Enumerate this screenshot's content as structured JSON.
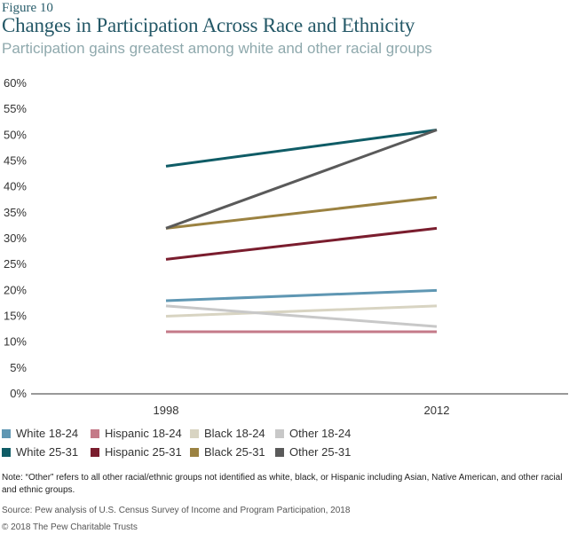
{
  "figure_label": "Figure 10",
  "title": "Changes in Participation Across Race and Ethnicity",
  "subtitle": "Participation gains greatest among white and other racial groups",
  "chart_data": {
    "type": "line",
    "x": [
      "1998",
      "2012"
    ],
    "ylim": [
      0,
      60
    ],
    "y_ticks": [
      "0%",
      "5%",
      "10%",
      "15%",
      "20%",
      "25%",
      "30%",
      "35%",
      "40%",
      "45%",
      "50%",
      "55%",
      "60%"
    ],
    "grid": false,
    "legend_position": "bottom-left",
    "series": [
      {
        "name": "White 18-24",
        "color": "#5f97b3",
        "values": [
          18,
          20
        ]
      },
      {
        "name": "Hispanic 18-24",
        "color": "#c47a88",
        "values": [
          12,
          12
        ]
      },
      {
        "name": "Black 18-24",
        "color": "#d8d4c2",
        "values": [
          15,
          17
        ]
      },
      {
        "name": "Other 18-24",
        "color": "#c8c8c8",
        "values": [
          17,
          13
        ]
      },
      {
        "name": "White 25-31",
        "color": "#0f5c66",
        "values": [
          44,
          51
        ]
      },
      {
        "name": "Hispanic 25-31",
        "color": "#7a1d2e",
        "values": [
          26,
          32
        ]
      },
      {
        "name": "Black 25-31",
        "color": "#9b8241",
        "values": [
          32,
          38
        ]
      },
      {
        "name": "Other 25-31",
        "color": "#5a5a5a",
        "values": [
          32,
          51
        ]
      }
    ]
  },
  "note": "Note: “Other” refers to all other racial/ethnic groups not identified as white, black, or Hispanic including Asian, Native American, and other racial and ethnic groups.",
  "source": "Source: Pew analysis of U.S. Census Survey of Income and Program Participation, 2018",
  "copyright": "© 2018 The Pew Charitable Trusts"
}
